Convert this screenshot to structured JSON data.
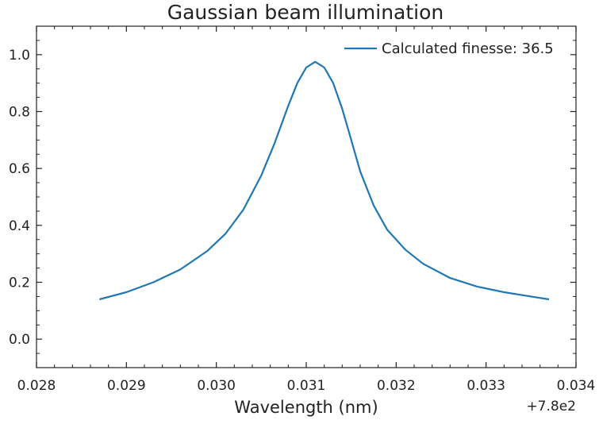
{
  "chart_data": {
    "type": "line",
    "title": "Gaussian beam illumination",
    "xlabel": "Wavelength (nm)",
    "ylabel": "",
    "x_offset_label": "+7.8e2",
    "xlim": [
      780.028,
      780.034
    ],
    "ylim": [
      -0.1,
      1.1
    ],
    "x_ticks": [
      780.028,
      780.029,
      780.03,
      780.031,
      780.032,
      780.033,
      780.034
    ],
    "x_tick_labels": [
      "0.028",
      "0.029",
      "0.030",
      "0.031",
      "0.032",
      "0.033",
      "0.034"
    ],
    "y_ticks": [
      0.0,
      0.2,
      0.4,
      0.6,
      0.8,
      1.0
    ],
    "y_tick_labels": [
      "0.0",
      "0.2",
      "0.4",
      "0.6",
      "0.8",
      "1.0"
    ],
    "grid": false,
    "legend_position": "top-right",
    "series": [
      {
        "name": "Calculated finesse: 36.5",
        "color": "#1f77b4",
        "x": [
          780.0287,
          780.029,
          780.0293,
          780.0296,
          780.0299,
          780.0301,
          780.0303,
          780.0305,
          780.03065,
          780.0308,
          780.0309,
          780.031,
          780.0311,
          780.0312,
          780.0313,
          780.0314,
          780.0315,
          780.0316,
          780.03175,
          780.0319,
          780.0321,
          780.0323,
          780.0326,
          780.0329,
          780.0332,
          780.0335,
          780.0337
        ],
        "y": [
          0.14,
          0.165,
          0.2,
          0.245,
          0.31,
          0.37,
          0.455,
          0.575,
          0.69,
          0.82,
          0.9,
          0.955,
          0.975,
          0.955,
          0.9,
          0.81,
          0.7,
          0.59,
          0.47,
          0.385,
          0.315,
          0.265,
          0.215,
          0.185,
          0.165,
          0.15,
          0.14
        ]
      }
    ]
  }
}
